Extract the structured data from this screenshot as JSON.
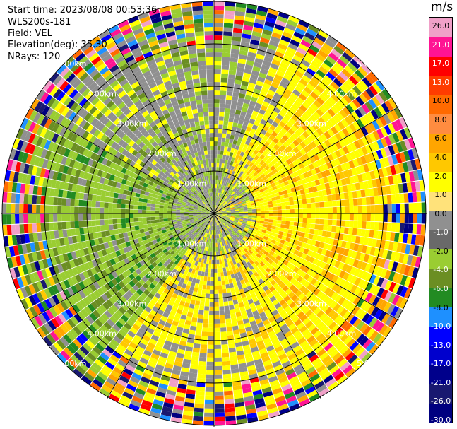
{
  "info": {
    "start_time": "Start time: 2023/08/08 00:53:36",
    "device": "WLS200s-181",
    "field": "Field: VEL",
    "elevation": "Elevation(deg): 35.30",
    "nrays": "NRays: 120"
  },
  "colorbar": {
    "unit": "m/s",
    "ticks": [
      "26.0",
      "21.0",
      "17.0",
      "13.0",
      "10.0",
      "8.0",
      "6.0",
      "4.0",
      "2.0",
      "1.0",
      "0.0",
      "-1.0",
      "-2.0",
      "-4.0",
      "-6.0",
      "-8.0",
      "-10.0",
      "-13.0",
      "-17.0",
      "-21.0",
      "-26.0",
      "-30.0"
    ],
    "colors": [
      "#f0a0c8",
      "#ff1493",
      "#ff0000",
      "#ff3c00",
      "#ff6a00",
      "#ff8c40",
      "#ffa500",
      "#ffc800",
      "#ffff00",
      "#ffe27a",
      "#909090",
      "#696969",
      "#9acd32",
      "#6b8e23",
      "#228b22",
      "#1e90ff",
      "#0000ff",
      "#0000cd",
      "#00008b",
      "#191970",
      "#000080"
    ]
  },
  "chart_data": {
    "type": "heatmap",
    "projection": "polar PPI",
    "field": "VEL",
    "units": "m/s",
    "nrays": 120,
    "range_rings_km": [
      1,
      2,
      3,
      4,
      5
    ],
    "range_labels": [
      "1.00km",
      "2.00km",
      "3.00km",
      "4.00km",
      "5.00km"
    ],
    "max_range_km": 5.0,
    "value_range": [
      -30,
      30
    ],
    "pattern": "mostly -2 to -4 m/s (olive) in west sector, 2 to 6 m/s (yellow/orange) in east sector, near-zero (grey) in NW and SE, noisy full-spectrum values in outer ranges"
  }
}
